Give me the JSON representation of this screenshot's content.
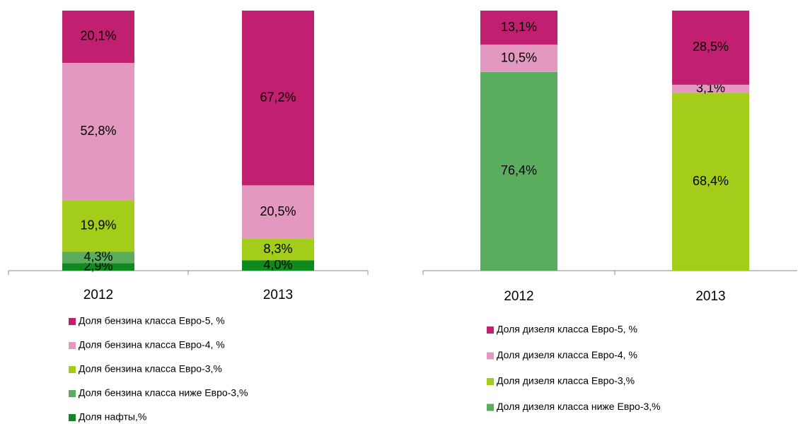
{
  "chart_data": [
    {
      "type": "stacked_bar",
      "categories": [
        "2012",
        "2013"
      ],
      "series": [
        {
          "name": "Доля нафты,%",
          "color": "#0f8a1e",
          "values": [
            2.9,
            4.0
          ],
          "value_labels": [
            "2,9%",
            "4,0%"
          ]
        },
        {
          "name": "Доля бензина класса ниже Евро-3,%",
          "color": "#5aad5f",
          "values": [
            4.3,
            null
          ],
          "value_labels": [
            "4,3%",
            null
          ]
        },
        {
          "name": "Доля бензина класса Евро-3,%",
          "color": "#a3cd1a",
          "values": [
            19.9,
            8.3
          ],
          "value_labels": [
            "19,9%",
            "8,3%"
          ]
        },
        {
          "name": "Доля бензина класса Евро-4, %",
          "color": "#e398bf",
          "values": [
            52.8,
            20.5
          ],
          "value_labels": [
            "52,8%",
            "20,5%"
          ]
        },
        {
          "name": "Доля бензина класса Евро-5, %",
          "color": "#c0206f",
          "values": [
            20.1,
            67.2
          ],
          "value_labels": [
            "20,1%",
            "67,2%"
          ]
        }
      ]
    },
    {
      "type": "stacked_bar",
      "categories": [
        "2012",
        "2013"
      ],
      "series": [
        {
          "name": "Доля дизеля класса ниже Евро-3,%",
          "color": "#5aad5f",
          "values": [
            76.4,
            null
          ],
          "value_labels": [
            "76,4%",
            null
          ]
        },
        {
          "name": "Доля дизеля класса Евро-3,%",
          "color": "#a3cd1a",
          "values": [
            null,
            68.4
          ],
          "value_labels": [
            null,
            "68,4%"
          ]
        },
        {
          "name": "Доля дизеля класса Евро-4, %",
          "color": "#e398bf",
          "values": [
            10.5,
            3.1
          ],
          "value_labels": [
            "10,5%",
            "3,1%"
          ]
        },
        {
          "name": "Доля дизеля класса Евро-5, %",
          "color": "#c0206f",
          "values": [
            13.1,
            28.5
          ],
          "value_labels": [
            "13,1%",
            "28,5%"
          ]
        }
      ]
    }
  ]
}
